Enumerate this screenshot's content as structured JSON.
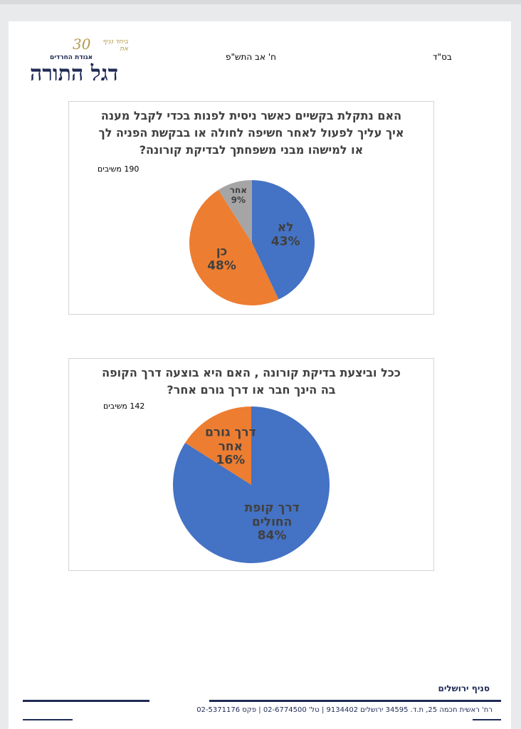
{
  "header": {
    "logo_title": "דגל התורה",
    "logo_subtitle": "אגודת החרדים",
    "logo_badge": "30",
    "logo_tagline": "ביחד נניף את",
    "date": "ח' אב התש\"פ",
    "bsd": "בס\"ד"
  },
  "chart_data": [
    {
      "type": "pie",
      "title": "האם נתקלת בקשיים כאשר ניסית לפנות בכדי לקבל מענה איך עליך לפעול לאחר חשיפה לחולה או בבקשת הפניה לך או למישהו מבני משפחתך לבדיקת קורונה?",
      "respondents": "190 משיבים",
      "categories": [
        "לא",
        "כן",
        "אחר"
      ],
      "values": [
        43,
        48,
        9
      ],
      "value_labels": [
        "43%",
        "48%",
        "9%"
      ],
      "colors": [
        "#4472c4",
        "#ed7d31",
        "#a5a5a5"
      ]
    },
    {
      "type": "pie",
      "title": "ככל וביצעת בדיקת קורונה , האם היא בוצעה דרך הקופה בה הינך חבר או דרך גורם אחר?",
      "respondents": "142 משיבים",
      "categories": [
        "דרך קופת החולים",
        "דרך גורם אחר"
      ],
      "values": [
        84,
        16
      ],
      "value_labels": [
        "84%",
        "16%"
      ],
      "colors": [
        "#4472c4",
        "#ed7d31"
      ]
    }
  ],
  "footer": {
    "branch": "סניף ירושלים",
    "address": "רח' ראשית חכמה 25, ת.ד. 34595 ירושלים 9134402 | טל' 02-6774500 | פקס 02-5371176"
  }
}
